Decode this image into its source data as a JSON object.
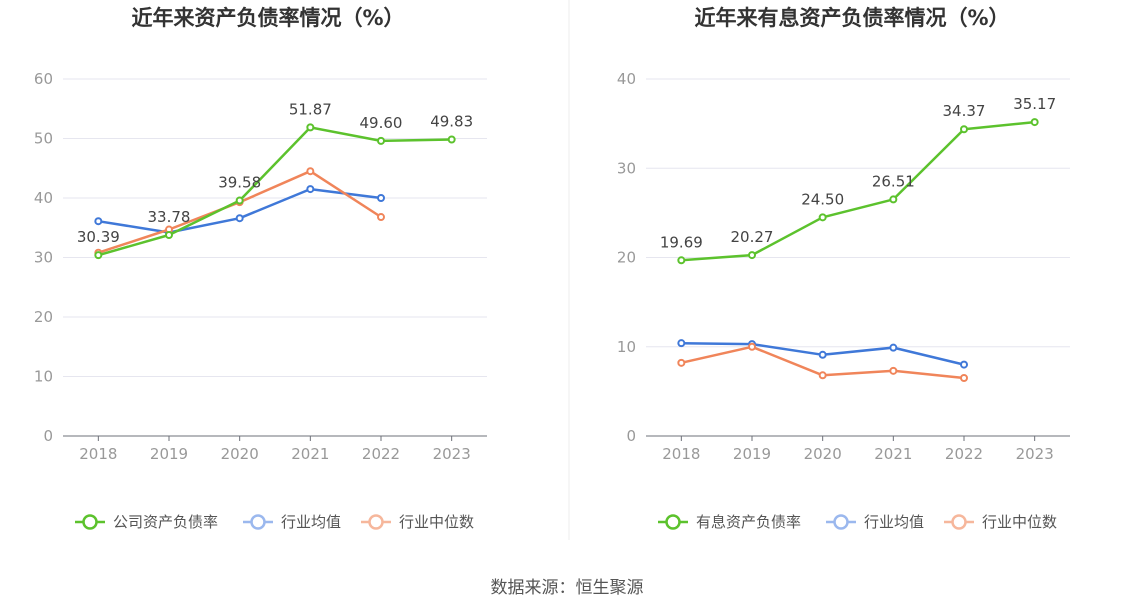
{
  "source": "数据来源：恒生聚源",
  "chart_data": [
    {
      "type": "line",
      "title": "近年来资产负债率情况（%）",
      "categories": [
        "2018",
        "2019",
        "2020",
        "2021",
        "2022",
        "2023"
      ],
      "ylim": [
        0,
        60
      ],
      "yticks": [
        0,
        10,
        20,
        30,
        40,
        50,
        60
      ],
      "grid": true,
      "legend_position": "bottom",
      "series": [
        {
          "name": "公司资产负债率",
          "color": "#5cc22d",
          "values": [
            30.39,
            33.78,
            39.58,
            51.87,
            49.6,
            49.83
          ],
          "labels": [
            "30.39",
            "33.78",
            "39.58",
            "51.87",
            "49.60",
            "49.83"
          ]
        },
        {
          "name": "行业均值",
          "color": "#3f78d8",
          "values": [
            36.1,
            34.2,
            36.6,
            41.5,
            40.0,
            null
          ]
        },
        {
          "name": "行业中位数",
          "color": "#f0855a",
          "values": [
            30.8,
            34.7,
            39.3,
            44.5,
            36.8,
            null
          ]
        }
      ]
    },
    {
      "type": "line",
      "title": "近年来有息资产负债率情况（%）",
      "categories": [
        "2018",
        "2019",
        "2020",
        "2021",
        "2022",
        "2023"
      ],
      "ylim": [
        0,
        40
      ],
      "yticks": [
        0,
        10,
        20,
        30,
        40
      ],
      "grid": true,
      "legend_position": "bottom",
      "series": [
        {
          "name": "有息资产负债率",
          "color": "#5cc22d",
          "values": [
            19.69,
            20.27,
            24.5,
            26.51,
            34.37,
            35.17
          ],
          "labels": [
            "19.69",
            "20.27",
            "24.50",
            "26.51",
            "34.37",
            "35.17"
          ]
        },
        {
          "name": "行业均值",
          "color": "#3f78d8",
          "values": [
            10.4,
            10.3,
            9.1,
            9.9,
            8.0,
            null
          ]
        },
        {
          "name": "行业中位数",
          "color": "#f0855a",
          "values": [
            8.2,
            10.0,
            6.8,
            7.3,
            6.5,
            null
          ]
        }
      ]
    }
  ]
}
